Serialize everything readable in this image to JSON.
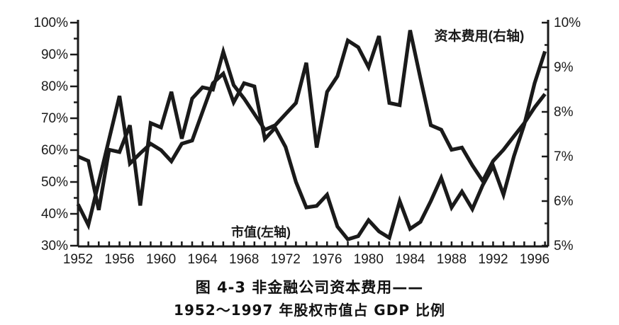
{
  "page": {
    "background": "#ffffff",
    "ink": "#1a1a1a"
  },
  "figure": {
    "caption_line1": "图 4-3  非金融公司资本费用——",
    "caption_line2": "1952～1997 年股权市值占 GDP 比例"
  },
  "chart_data": {
    "type": "line",
    "title": "图 4-3 非金融公司资本费用——1952～1997 年股权市值占 GDP 比例",
    "grid": false,
    "legend_position": "in-chart annotations",
    "x": [
      1952,
      1953,
      1954,
      1955,
      1956,
      1957,
      1958,
      1959,
      1960,
      1961,
      1962,
      1963,
      1964,
      1965,
      1966,
      1967,
      1968,
      1969,
      1970,
      1971,
      1972,
      1973,
      1974,
      1975,
      1976,
      1977,
      1978,
      1979,
      1980,
      1981,
      1982,
      1983,
      1984,
      1985,
      1986,
      1987,
      1988,
      1989,
      1990,
      1991,
      1992,
      1993,
      1994,
      1995,
      1996,
      1997
    ],
    "x_tick_labels": [
      "1952",
      "1956",
      "1960",
      "1964",
      "1968",
      "1972",
      "1976",
      "1980",
      "1984",
      "1988",
      "1992",
      "1996"
    ],
    "left_axis": {
      "min": 30,
      "max": 100,
      "major_step": 10,
      "minor_step": 5,
      "tick_labels": [
        "100%",
        "90%",
        "80%",
        "70%",
        "60%",
        "50%",
        "40%",
        "30%"
      ]
    },
    "right_axis": {
      "min": 5,
      "max": 10,
      "major_step": 1,
      "minor_step": 0.5,
      "tick_labels": [
        "10%",
        "9%",
        "8%",
        "7%",
        "6%",
        "5%"
      ]
    },
    "series": [
      {
        "name": "市值(左轴)",
        "axis": "left",
        "values": [
          43,
          36.5,
          50,
          63.5,
          77,
          55.8,
          59,
          62,
          60,
          56.5,
          62,
          63,
          72,
          81,
          84,
          75,
          81,
          80,
          63.5,
          67,
          61,
          50,
          42,
          42.5,
          46,
          36,
          32,
          33,
          38,
          34.5,
          32.5,
          44,
          35.3,
          37.5,
          44,
          51.3,
          42,
          47,
          41.5,
          49,
          55,
          46,
          58,
          68,
          81,
          91
        ]
      },
      {
        "name": "资本费用(右轴)",
        "axis": "right",
        "values": [
          7.0,
          6.9,
          5.8,
          7.15,
          7.1,
          7.7,
          5.9,
          7.75,
          7.65,
          8.45,
          7.4,
          8.3,
          8.55,
          8.5,
          9.35,
          8.6,
          8.3,
          7.95,
          7.6,
          7.7,
          7.95,
          8.2,
          9.1,
          7.2,
          8.45,
          8.8,
          9.6,
          9.45,
          9.0,
          9.7,
          8.2,
          8.15,
          9.83,
          8.75,
          7.7,
          7.6,
          7.15,
          7.2,
          6.8,
          6.45,
          6.9,
          7.15,
          7.45,
          7.75,
          8.1,
          8.4
        ]
      }
    ],
    "annotations": [
      {
        "text": "资本费用(右轴)",
        "x": 676,
        "y": 57,
        "size": 19
      },
      {
        "text": "市值(左轴)",
        "x": 368,
        "y": 334,
        "size": 18
      }
    ]
  }
}
